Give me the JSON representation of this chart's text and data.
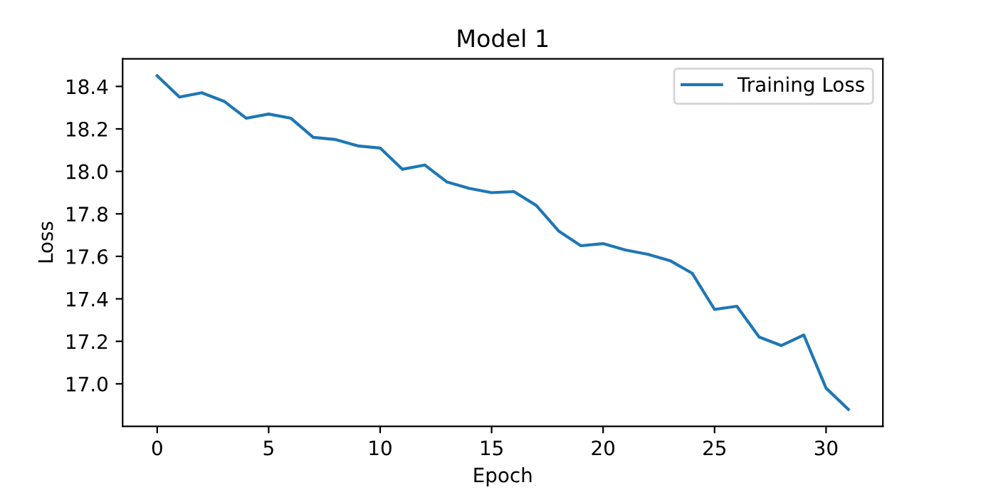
{
  "chart_data": {
    "type": "line",
    "title": "Model 1",
    "xlabel": "Epoch",
    "ylabel": "Loss",
    "x": [
      0,
      1,
      2,
      3,
      4,
      5,
      6,
      7,
      8,
      9,
      10,
      11,
      12,
      13,
      14,
      15,
      16,
      17,
      18,
      19,
      20,
      21,
      22,
      23,
      24,
      25,
      26,
      27,
      28,
      29,
      30,
      31
    ],
    "series": [
      {
        "name": "Training Loss",
        "color": "#1f77b4",
        "values": [
          18.45,
          18.35,
          18.37,
          18.33,
          18.25,
          18.27,
          18.25,
          18.16,
          18.15,
          18.12,
          18.11,
          18.01,
          18.03,
          17.95,
          17.92,
          17.9,
          17.905,
          17.84,
          17.72,
          17.65,
          17.66,
          17.63,
          17.61,
          17.58,
          17.52,
          17.35,
          17.365,
          17.22,
          17.18,
          17.23,
          16.98,
          16.88
        ]
      }
    ],
    "xlim": [
      -1.55,
      32.55
    ],
    "ylim": [
      16.8,
      18.53
    ],
    "xticks": [
      0,
      5,
      10,
      15,
      20,
      25,
      30
    ],
    "yticks": [
      {
        "value": 17.0,
        "label": "17.0"
      },
      {
        "value": 17.2,
        "label": "17.2"
      },
      {
        "value": 17.4,
        "label": "17.4"
      },
      {
        "value": 17.6,
        "label": "17.6"
      },
      {
        "value": 17.8,
        "label": "17.8"
      },
      {
        "value": 18.0,
        "label": "18.0"
      },
      {
        "value": 18.2,
        "label": "18.2"
      },
      {
        "value": 18.4,
        "label": "18.4"
      }
    ],
    "legend": "top right"
  }
}
